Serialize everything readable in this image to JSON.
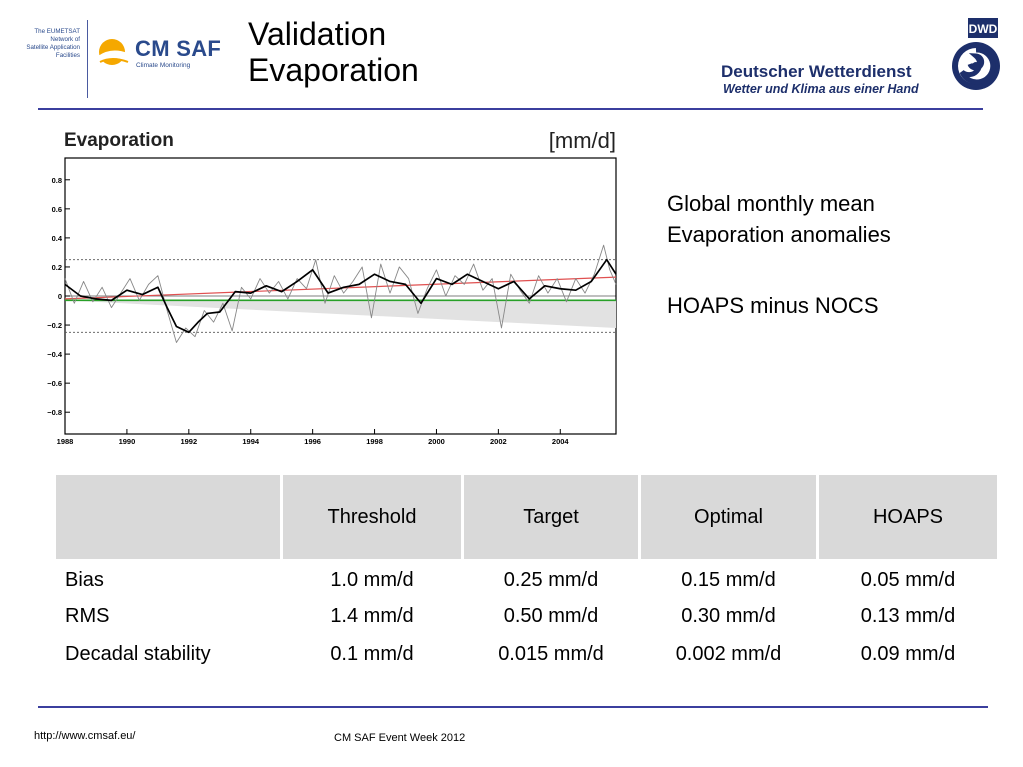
{
  "header": {
    "eumetsat_lines": [
      "The EUMETSAT",
      "Network of",
      "Satellite Application",
      "Facilities"
    ],
    "cmsaf_name": "CM SAF",
    "cmsaf_tagline": "Climate Monitoring",
    "title_line1": "Validation",
    "title_line2": "Evaporation",
    "dwd_name": "Deutscher Wetterdienst",
    "dwd_slogan": "Wetter und Klima aus einer Hand",
    "dwd_logo_text": "DWD",
    "brand_color": "#2a4a8c",
    "accent_color": "#f5a800",
    "rule_color": "#3b3f9e"
  },
  "chart_data": {
    "type": "line",
    "title": "Evaporation",
    "unit_label": "[mm/d]",
    "xlabel": "",
    "ylabel": "",
    "xlim": [
      1988,
      2005.8
    ],
    "ylim": [
      -0.95,
      0.95
    ],
    "x_ticks": [
      1988,
      1990,
      1992,
      1994,
      1996,
      1998,
      2000,
      2002,
      2004
    ],
    "y_ticks": [
      0.8,
      0.6,
      0.4,
      0.2,
      0,
      -0.2,
      -0.4,
      -0.6,
      -0.8
    ],
    "y_tick_labels": [
      "0.8",
      "0.6",
      "0.4",
      "0.2",
      "0",
      "−0.2",
      "−0.4",
      "−0.6",
      "−0.8"
    ],
    "threshold_band": [
      -0.25,
      0.25
    ],
    "series": [
      {
        "role": "smoothed anomaly",
        "color": "#000000",
        "x": [
          1988.0,
          1988.5,
          1989.0,
          1989.5,
          1990.0,
          1990.5,
          1991.0,
          1991.3,
          1991.6,
          1992.0,
          1992.3,
          1992.6,
          1993.0,
          1993.5,
          1994.0,
          1994.5,
          1995.0,
          1995.5,
          1996.0,
          1996.5,
          1997.0,
          1997.5,
          1998.0,
          1998.5,
          1999.0,
          1999.5,
          2000.0,
          2000.5,
          2001.0,
          2001.5,
          2002.0,
          2002.5,
          2003.0,
          2003.5,
          2004.0,
          2004.5,
          2005.0,
          2005.5,
          2005.8
        ],
        "y": [
          0.08,
          0.0,
          -0.02,
          -0.03,
          0.04,
          0.01,
          0.06,
          -0.08,
          -0.21,
          -0.25,
          -0.18,
          -0.12,
          -0.11,
          0.03,
          0.02,
          0.07,
          0.03,
          0.1,
          0.18,
          0.02,
          0.06,
          0.08,
          0.15,
          0.1,
          0.08,
          -0.05,
          0.12,
          0.08,
          0.15,
          0.1,
          0.05,
          0.1,
          -0.02,
          0.07,
          0.05,
          0.04,
          0.1,
          0.25,
          0.15
        ]
      },
      {
        "role": "monthly anomaly",
        "color": "#888888",
        "x": [
          1988.0,
          1988.3,
          1988.6,
          1988.9,
          1989.2,
          1989.5,
          1989.8,
          1990.1,
          1990.4,
          1990.7,
          1991.0,
          1991.3,
          1991.6,
          1991.9,
          1992.2,
          1992.5,
          1992.8,
          1993.1,
          1993.4,
          1993.7,
          1994.0,
          1994.3,
          1994.6,
          1994.9,
          1995.2,
          1995.5,
          1995.8,
          1996.1,
          1996.4,
          1996.7,
          1997.0,
          1997.3,
          1997.6,
          1997.9,
          1998.2,
          1998.5,
          1998.8,
          1999.1,
          1999.4,
          1999.7,
          2000.0,
          2000.3,
          2000.6,
          2000.9,
          2001.2,
          2001.5,
          2001.8,
          2002.1,
          2002.4,
          2002.7,
          2003.0,
          2003.3,
          2003.6,
          2003.9,
          2004.2,
          2004.5,
          2004.8,
          2005.1,
          2005.4,
          2005.6,
          2005.8
        ],
        "y": [
          0.12,
          -0.05,
          0.1,
          -0.04,
          0.06,
          -0.08,
          0.02,
          0.12,
          -0.03,
          0.08,
          0.14,
          -0.1,
          -0.32,
          -0.22,
          -0.28,
          -0.1,
          -0.18,
          -0.05,
          -0.24,
          0.06,
          -0.02,
          0.12,
          0.02,
          0.1,
          -0.02,
          0.12,
          0.05,
          0.25,
          -0.05,
          0.14,
          0.02,
          0.1,
          0.2,
          -0.15,
          0.22,
          0.02,
          0.2,
          0.12,
          -0.12,
          0.05,
          0.18,
          0.0,
          0.14,
          0.08,
          0.22,
          0.04,
          0.12,
          -0.22,
          0.15,
          0.04,
          -0.05,
          0.14,
          0.02,
          0.12,
          -0.04,
          0.12,
          0.02,
          0.15,
          0.35,
          0.18,
          0.08
        ]
      },
      {
        "role": "trend",
        "color": "#e05050",
        "x": [
          1988,
          2005.8
        ],
        "y": [
          -0.02,
          0.13
        ]
      },
      {
        "role": "mean",
        "color": "#28a028",
        "x": [
          1988,
          2005.8
        ],
        "y": [
          -0.03,
          -0.03
        ]
      }
    ],
    "gray_wedge": {
      "x": [
        1988,
        2005.8
      ],
      "upper": [
        -0.03,
        -0.03
      ],
      "lower": [
        -0.03,
        -0.22
      ],
      "color": "#e2e2e2"
    },
    "grid": false,
    "legend": "none"
  },
  "side": {
    "line1": "Global monthly mean",
    "line2": "Evaporation anomalies",
    "line3": "HOAPS minus NOCS"
  },
  "table": {
    "headers": [
      "",
      "Threshold",
      "Target",
      "Optimal",
      "HOAPS"
    ],
    "rows": [
      [
        "Bias",
        "1.0 mm/d",
        "0.25 mm/d",
        "0.15 mm/d",
        "0.05 mm/d"
      ],
      [
        "RMS",
        "1.4 mm/d",
        "0.50 mm/d",
        "0.30 mm/d",
        "0.13 mm/d"
      ],
      [
        "Decadal stability",
        "0.1 mm/d",
        "0.015 mm/d",
        "0.002 mm/d",
        "0.09 mm/d"
      ]
    ],
    "header_bg": "#d9d9d9"
  },
  "footer": {
    "url": "http://www.cmsaf.eu/",
    "event": "CM SAF Event Week 2012"
  }
}
